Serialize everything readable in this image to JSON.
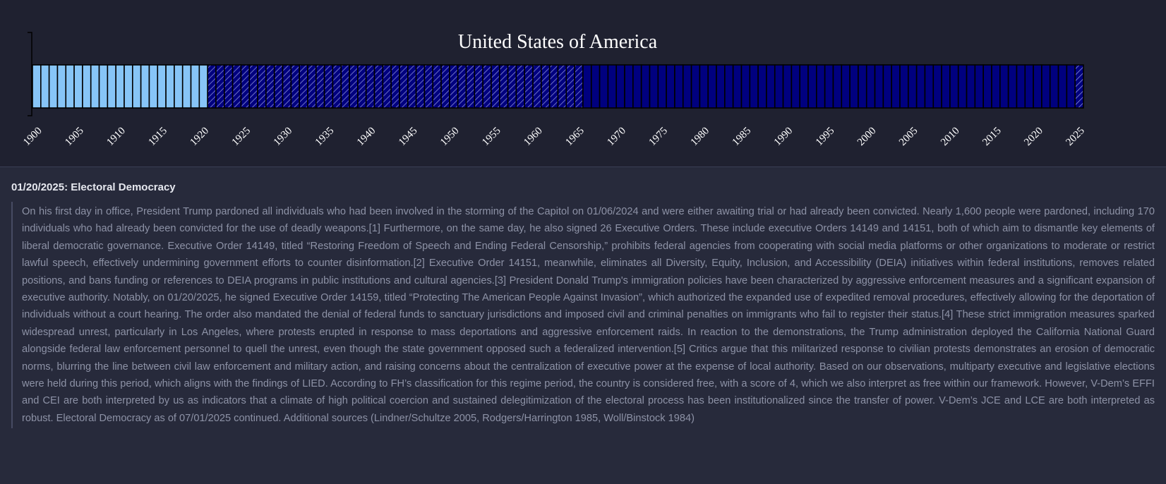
{
  "chart_data": {
    "type": "bar",
    "title": "United States of America",
    "xlim": [
      1900,
      2026
    ],
    "x_ticks": [
      1900,
      1905,
      1910,
      1915,
      1920,
      1925,
      1930,
      1935,
      1940,
      1945,
      1950,
      1955,
      1960,
      1965,
      1970,
      1975,
      1980,
      1985,
      1990,
      1995,
      2000,
      2005,
      2010,
      2015,
      2020,
      2025
    ],
    "segments": [
      {
        "start": 1900,
        "end": 1920,
        "color": "#87c5f7",
        "hatched": false
      },
      {
        "start": 1921,
        "end": 1965,
        "color": "#00007f",
        "hatched": true
      },
      {
        "start": 1966,
        "end": 2024,
        "color": "#00007f",
        "hatched": false
      },
      {
        "start": 2025,
        "end": 2025,
        "color": "#00007f",
        "hatched": true
      }
    ],
    "grid": false,
    "legend": "none"
  },
  "info": {
    "heading": "01/20/2025: Electoral Democracy",
    "body": "On his first day in office, President Trump pardoned all individuals who had been involved in the storming of the Capitol on 01/06/2024 and were either awaiting trial or had already been convicted. Nearly 1,600 people were pardoned, including 170 individuals who had already been convicted for the use of deadly weapons.[1] Furthermore, on the same day, he also signed 26 Executive Orders. These include executive Orders 14149 and 14151, both of which aim to dismantle key elements of liberal democratic governance. Executive Order 14149, titled “Restoring Freedom of Speech and Ending Federal Censorship,” prohibits federal agencies from cooperating with social media platforms or other organizations to moderate or restrict lawful speech, effectively undermining government efforts to counter disinformation.[2] Executive Order 14151, meanwhile, eliminates all Diversity, Equity, Inclusion, and Accessibility (DEIA) initiatives within federal institutions, removes related positions, and bans funding or references to DEIA programs in public institutions and cultural agencies.[3] President Donald Trump's immigration policies have been characterized by aggressive enforcement measures and a significant expansion of executive authority. Notably, on 01/20/2025, he signed Executive Order 14159, titled “Protecting The American People Against Invasion”, which authorized the expanded use of expedited removal procedures, effectively allowing for the deportation of individuals without a court hearing. The order also mandated the denial of federal funds to sanctuary jurisdictions and imposed civil and criminal penalties on immigrants who fail to register their status.[4] These strict immigration measures sparked widespread unrest, particularly in Los Angeles, where protests erupted in response to mass deportations and aggressive enforcement raids. In reaction to the demonstrations, the Trump administration deployed the California National Guard alongside federal law enforcement personnel to quell the unrest, even though the state government opposed such a federalized intervention.[5] Critics argue that this militarized response to civilian protests demonstrates an erosion of democratic norms, blurring the line between civil law enforcement and military action, and raising concerns about the centralization of executive power at the expense of local authority. Based on our observations, multiparty executive and legislative elections were held during this period, which aligns with the findings of LIED. According to FH’s classification for this regime period, the country is considered free, with a score of 4, which we also interpret as free within our framework. However, V-Dem’s EFFI and CEI are both interpreted by us as indicators that a climate of high political coercion and sustained delegitimization of the electoral process has been institutionalized since the transfer of power. V-Dem’s JCE and LCE are both interpreted as robust. Electoral Democracy as of 07/01/2025 continued. Additional sources (Lindner/Schultze 2005, Rodgers/Harrington 1985, Woll/Binstock 1984)"
  }
}
